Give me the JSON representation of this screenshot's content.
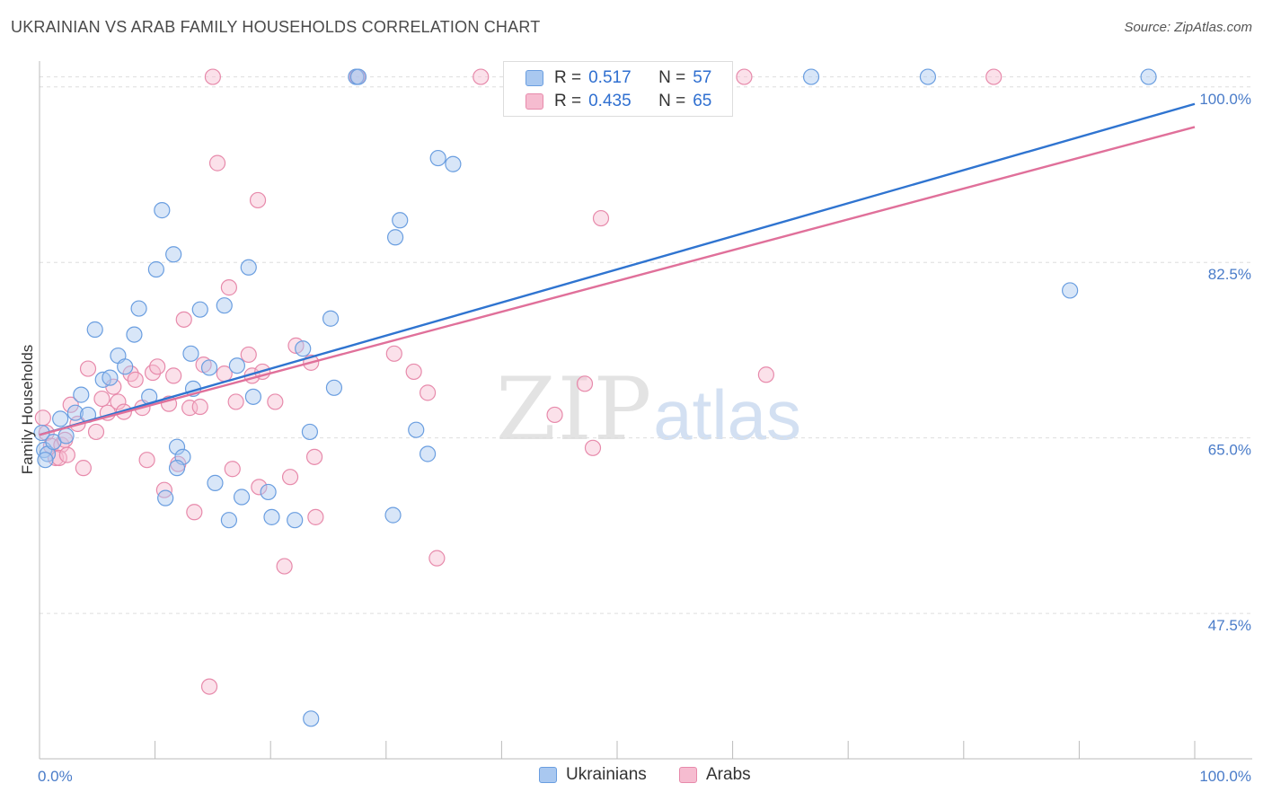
{
  "header": {
    "title": "UKRAINIAN VS ARAB FAMILY HOUSEHOLDS CORRELATION CHART",
    "source": "Source: ZipAtlas.com"
  },
  "watermark": {
    "zip": "ZIP",
    "atlas": "atlas"
  },
  "legend": {
    "series": [
      {
        "r_label": "R =",
        "r_value": "0.517",
        "n_label": "N =",
        "n_value": "57",
        "color": "#a9c8f0",
        "edge": "#6a9ee0"
      },
      {
        "r_label": "R =",
        "r_value": "0.435",
        "n_label": "N =",
        "n_value": "65",
        "color": "#f6bcd0",
        "edge": "#e78aab"
      }
    ]
  },
  "bottom_legend": [
    {
      "label": "Ukrainians",
      "color": "#a9c8f0",
      "edge": "#6a9ee0"
    },
    {
      "label": "Arabs",
      "color": "#f6bcd0",
      "edge": "#e78aab"
    }
  ],
  "chart_data": {
    "type": "scatter",
    "title": "UKRAINIAN VS ARAB FAMILY HOUSEHOLDS CORRELATION CHART",
    "ylabel": "Family Households",
    "xlabel": "",
    "xlim": [
      0,
      100
    ],
    "ylim": [
      33,
      101.5
    ],
    "x_tick_labels": [
      {
        "value": 0,
        "label": "0.0%"
      },
      {
        "value": 100,
        "label": "100.0%"
      }
    ],
    "y_tick_labels": [
      {
        "value": 47.5,
        "label": "47.5%"
      },
      {
        "value": 65.0,
        "label": "65.0%"
      },
      {
        "value": 82.5,
        "label": "82.5%"
      },
      {
        "value": 100.0,
        "label": "100.0%"
      }
    ],
    "grid": true,
    "series": [
      {
        "name": "Ukrainians",
        "color": "#6a9ee0",
        "fill": "#a9c8f0",
        "trend": {
          "x": [
            0,
            100
          ],
          "y": [
            65.3,
            98.3
          ]
        },
        "points": [
          [
            0.4,
            63.8
          ],
          [
            0.7,
            63.4
          ],
          [
            1.2,
            64.6
          ],
          [
            1.8,
            66.9
          ],
          [
            2.3,
            65.2
          ],
          [
            3.1,
            67.5
          ],
          [
            3.6,
            69.3
          ],
          [
            4.2,
            67.3
          ],
          [
            4.8,
            75.8
          ],
          [
            5.5,
            70.8
          ],
          [
            6.1,
            71.0
          ],
          [
            6.8,
            73.2
          ],
          [
            7.4,
            72.1
          ],
          [
            8.2,
            75.3
          ],
          [
            8.6,
            77.9
          ],
          [
            9.5,
            69.1
          ],
          [
            10.1,
            81.8
          ],
          [
            10.6,
            87.7
          ],
          [
            11.6,
            83.3
          ],
          [
            11.9,
            64.1
          ],
          [
            12.4,
            63.1
          ],
          [
            13.1,
            73.4
          ],
          [
            13.3,
            69.9
          ],
          [
            13.9,
            77.8
          ],
          [
            14.7,
            72.0
          ],
          [
            15.2,
            60.5
          ],
          [
            16.0,
            78.2
          ],
          [
            16.4,
            56.8
          ],
          [
            17.1,
            72.2
          ],
          [
            17.5,
            59.1
          ],
          [
            18.1,
            82.0
          ],
          [
            18.5,
            69.1
          ],
          [
            20.1,
            57.1
          ],
          [
            19.8,
            59.6
          ],
          [
            22.1,
            56.8
          ],
          [
            22.8,
            73.9
          ],
          [
            23.4,
            65.6
          ],
          [
            23.5,
            37.0
          ],
          [
            25.2,
            76.9
          ],
          [
            25.5,
            70.0
          ],
          [
            27.4,
            101.0
          ],
          [
            27.6,
            101.0
          ],
          [
            30.6,
            57.3
          ],
          [
            30.8,
            85.0
          ],
          [
            31.2,
            86.7
          ],
          [
            32.6,
            65.8
          ],
          [
            33.6,
            63.4
          ],
          [
            34.5,
            92.9
          ],
          [
            35.8,
            92.3
          ],
          [
            66.8,
            101.0
          ],
          [
            76.9,
            101.0
          ],
          [
            96.0,
            101.0
          ],
          [
            89.2,
            79.7
          ],
          [
            0.2,
            65.5
          ],
          [
            0.5,
            62.8
          ],
          [
            10.9,
            59.0
          ],
          [
            11.9,
            62.0
          ]
        ]
      },
      {
        "name": "Arabs",
        "color": "#e78aab",
        "fill": "#f6bcd0",
        "trend": {
          "x": [
            0,
            100
          ],
          "y": [
            65.3,
            96.0
          ]
        },
        "points": [
          [
            0.3,
            67.0
          ],
          [
            0.6,
            65.5
          ],
          [
            1.0,
            64.2
          ],
          [
            1.4,
            63.0
          ],
          [
            1.9,
            64.3
          ],
          [
            2.2,
            64.8
          ],
          [
            2.7,
            68.3
          ],
          [
            3.3,
            66.4
          ],
          [
            3.8,
            62.0
          ],
          [
            4.2,
            71.9
          ],
          [
            4.9,
            65.6
          ],
          [
            5.4,
            68.9
          ],
          [
            5.9,
            67.5
          ],
          [
            6.4,
            70.1
          ],
          [
            6.8,
            68.6
          ],
          [
            7.3,
            67.6
          ],
          [
            7.9,
            71.4
          ],
          [
            8.3,
            70.8
          ],
          [
            8.9,
            68.0
          ],
          [
            9.3,
            62.8
          ],
          [
            9.8,
            71.5
          ],
          [
            10.2,
            72.1
          ],
          [
            10.8,
            59.8
          ],
          [
            11.2,
            68.4
          ],
          [
            11.6,
            71.2
          ],
          [
            12.0,
            62.4
          ],
          [
            12.5,
            76.8
          ],
          [
            13.0,
            68.0
          ],
          [
            13.4,
            57.6
          ],
          [
            13.9,
            68.1
          ],
          [
            14.2,
            72.3
          ],
          [
            14.7,
            40.2
          ],
          [
            15.0,
            101.0
          ],
          [
            15.4,
            92.4
          ],
          [
            16.0,
            71.4
          ],
          [
            16.4,
            80.0
          ],
          [
            16.7,
            61.9
          ],
          [
            17.0,
            68.6
          ],
          [
            18.1,
            73.3
          ],
          [
            18.4,
            71.2
          ],
          [
            18.9,
            88.7
          ],
          [
            19.0,
            60.1
          ],
          [
            19.3,
            71.6
          ],
          [
            20.4,
            68.6
          ],
          [
            21.2,
            52.2
          ],
          [
            21.7,
            61.1
          ],
          [
            22.2,
            74.2
          ],
          [
            23.5,
            72.5
          ],
          [
            23.8,
            63.1
          ],
          [
            23.9,
            57.1
          ],
          [
            27.5,
            101.0
          ],
          [
            30.7,
            73.4
          ],
          [
            32.4,
            71.6
          ],
          [
            33.6,
            69.5
          ],
          [
            34.4,
            53.0
          ],
          [
            38.2,
            101.0
          ],
          [
            44.6,
            67.3
          ],
          [
            47.2,
            70.4
          ],
          [
            47.9,
            64.0
          ],
          [
            48.6,
            86.9
          ],
          [
            61.0,
            101.0
          ],
          [
            62.9,
            71.3
          ],
          [
            82.6,
            101.0
          ],
          [
            1.7,
            63.0
          ],
          [
            2.4,
            63.3
          ]
        ]
      }
    ]
  }
}
